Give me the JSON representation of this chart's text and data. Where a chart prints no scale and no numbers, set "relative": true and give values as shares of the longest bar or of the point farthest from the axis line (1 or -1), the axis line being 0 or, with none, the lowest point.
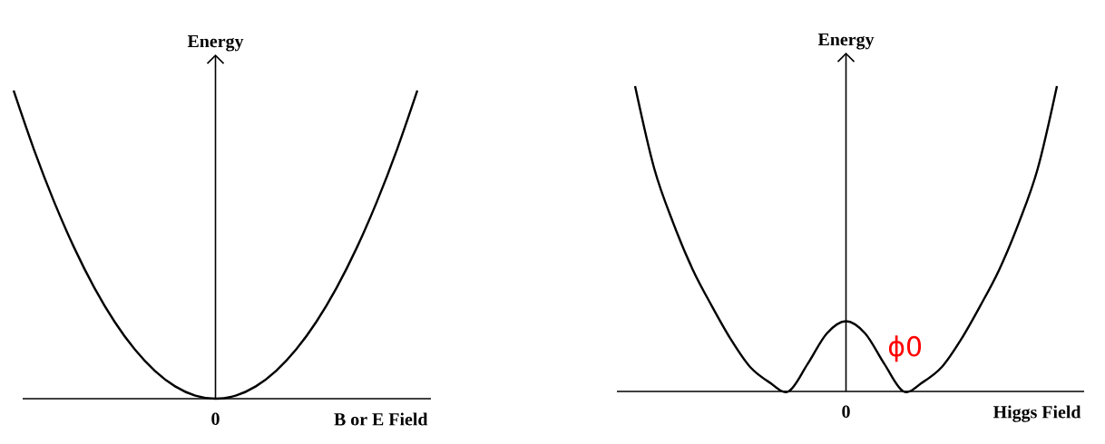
{
  "chart_data": [
    {
      "type": "line",
      "relative": true,
      "ylabel": "Energy",
      "xlabel": "B or E Field",
      "annotations": [
        "0"
      ],
      "categories": [
        null,
        null,
        null,
        null,
        null,
        null,
        null,
        null,
        null,
        null,
        null,
        null,
        null,
        null,
        null,
        null,
        null,
        null,
        null,
        null,
        null
      ],
      "series": [
        {
          "color": "#000000",
          "values": [
            1,
            0.81,
            0.64,
            0.49,
            0.36,
            0.25,
            0.16,
            0.09,
            0.04,
            0.01,
            0,
            0.01,
            0.04,
            0.09,
            0.16,
            0.25,
            0.36,
            0.49,
            0.64,
            0.81,
            1
          ]
        }
      ]
    },
    {
      "type": "line",
      "relative": true,
      "ylabel": "Energy",
      "xlabel": "Higgs Field",
      "annotations": [
        "0",
        "ϕ0"
      ],
      "categories": [
        null,
        null,
        null,
        null,
        null,
        null,
        null,
        null,
        null,
        null,
        null,
        null,
        null,
        null,
        null,
        null,
        null,
        null,
        null,
        null,
        null,
        null,
        null
      ],
      "series": [
        {
          "color": "#000000",
          "values": [
            1,
            0.73,
            0.55,
            0.4,
            0.28,
            0.17,
            0.08,
            0.03,
            0,
            0.09,
            0.19,
            0.23,
            0.19,
            0.09,
            0,
            0.03,
            0.08,
            0.17,
            0.28,
            0.4,
            0.55,
            0.73,
            1
          ]
        }
      ]
    }
  ]
}
